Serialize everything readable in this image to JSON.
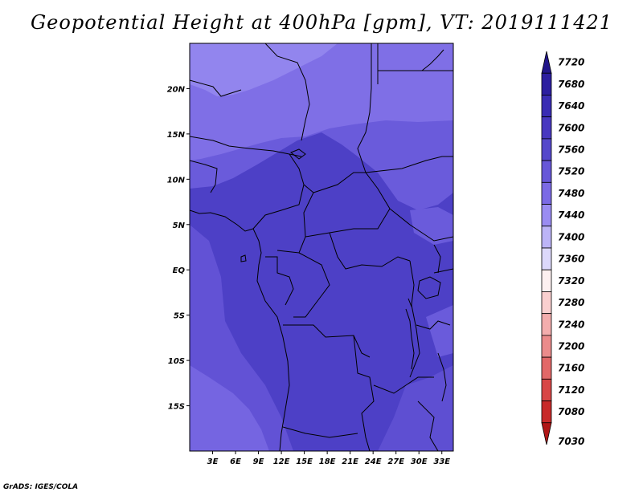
{
  "title": "Geopotential Height at 400hPa [gpm], VT: 2019111421",
  "credit": "GrADS: IGES/COLA",
  "map": {
    "lon_range": [
      0,
      34.5
    ],
    "lat_range": [
      -20,
      25
    ],
    "lat_ticks": [
      {
        "value": 20,
        "label": "20N"
      },
      {
        "value": 15,
        "label": "15N"
      },
      {
        "value": 10,
        "label": "10N"
      },
      {
        "value": 5,
        "label": "5N"
      },
      {
        "value": 0,
        "label": "EQ"
      },
      {
        "value": -5,
        "label": "5S"
      },
      {
        "value": -10,
        "label": "10S"
      },
      {
        "value": -15,
        "label": "15S"
      }
    ],
    "lon_ticks": [
      {
        "value": 3,
        "label": "3E"
      },
      {
        "value": 6,
        "label": "6E"
      },
      {
        "value": 9,
        "label": "9E"
      },
      {
        "value": 12,
        "label": "12E"
      },
      {
        "value": 15,
        "label": "15E"
      },
      {
        "value": 18,
        "label": "18E"
      },
      {
        "value": 21,
        "label": "21E"
      },
      {
        "value": 24,
        "label": "24E"
      },
      {
        "value": 27,
        "label": "27E"
      },
      {
        "value": 30,
        "label": "30E"
      },
      {
        "value": 33,
        "label": "33E"
      }
    ]
  },
  "colorbar": {
    "levels": [
      "7720",
      "7680",
      "7640",
      "7600",
      "7560",
      "7520",
      "7480",
      "7440",
      "7400",
      "7360",
      "7320",
      "7280",
      "7240",
      "7200",
      "7160",
      "7120",
      "7080",
      "7030"
    ],
    "colors": [
      "#22168a",
      "#2c1ea0",
      "#3a2cb4",
      "#4838c0",
      "#5548cb",
      "#6757d8",
      "#7b6ae5",
      "#9a8cf2",
      "#bcb4f7",
      "#dcd8fb",
      "#fdf0f0",
      "#f9cfcf",
      "#f3adad",
      "#eb8b8b",
      "#e26868",
      "#d84646",
      "#c82a2a",
      "#b01616"
    ]
  }
}
